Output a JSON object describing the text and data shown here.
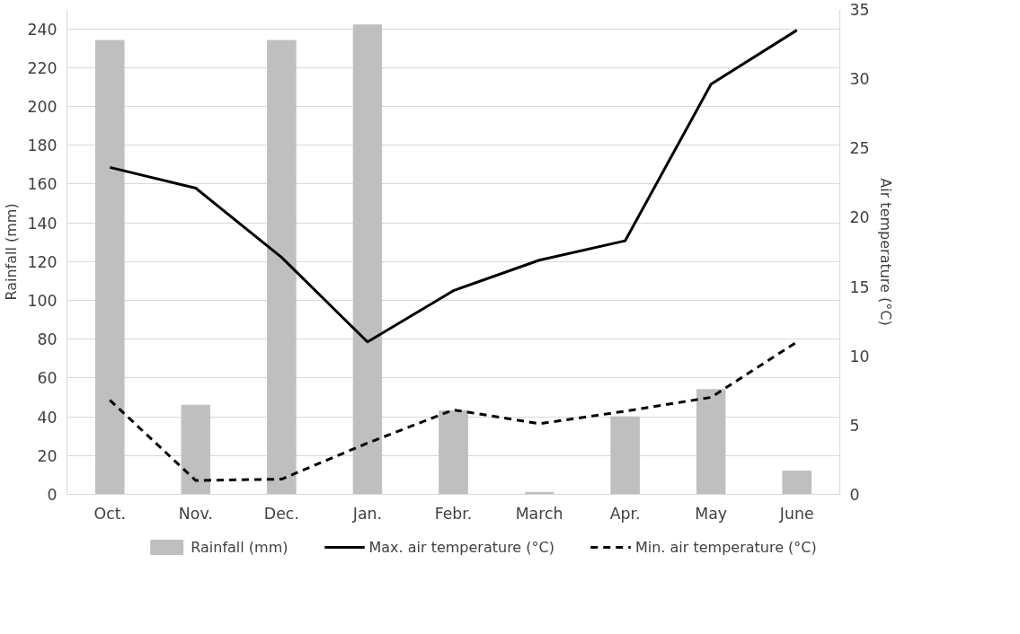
{
  "chart_data": {
    "type": "bar",
    "categories": [
      "Oct.",
      "Nov.",
      "Dec.",
      "Jan.",
      "Febr.",
      "March",
      "Apr.",
      "May",
      "June"
    ],
    "ylabel": "Rainfall (mm)",
    "y2label": "Air temperature (°C)",
    "ylim": [
      0,
      250
    ],
    "yticks": [
      0,
      20,
      40,
      60,
      80,
      100,
      120,
      140,
      160,
      180,
      200,
      220,
      240
    ],
    "y2lim": [
      0,
      35
    ],
    "y2ticks": [
      0,
      5,
      10,
      15,
      20,
      25,
      30,
      35
    ],
    "grid": "y",
    "legend": "bottom",
    "series": [
      {
        "name": "Rainfall (mm)",
        "color": "#bfbfbf",
        "values": [
          234,
          46,
          234,
          242,
          43,
          1,
          40,
          54,
          12
        ]
      },
      {
        "name": "Max. air temperature (°C)",
        "type": "line",
        "axis": "y2",
        "color": "#000000",
        "line_style": "solid",
        "values": [
          23.6,
          22.1,
          17.1,
          11.0,
          14.7,
          16.9,
          18.3,
          29.6,
          33.5
        ]
      },
      {
        "name": "Min. air temperature (°C)",
        "type": "line",
        "axis": "y2",
        "color": "#000000",
        "line_style": "dashed",
        "values": [
          6.8,
          1.0,
          1.1,
          3.7,
          6.1,
          5.1,
          6.0,
          7.0,
          11.0
        ]
      }
    ]
  }
}
